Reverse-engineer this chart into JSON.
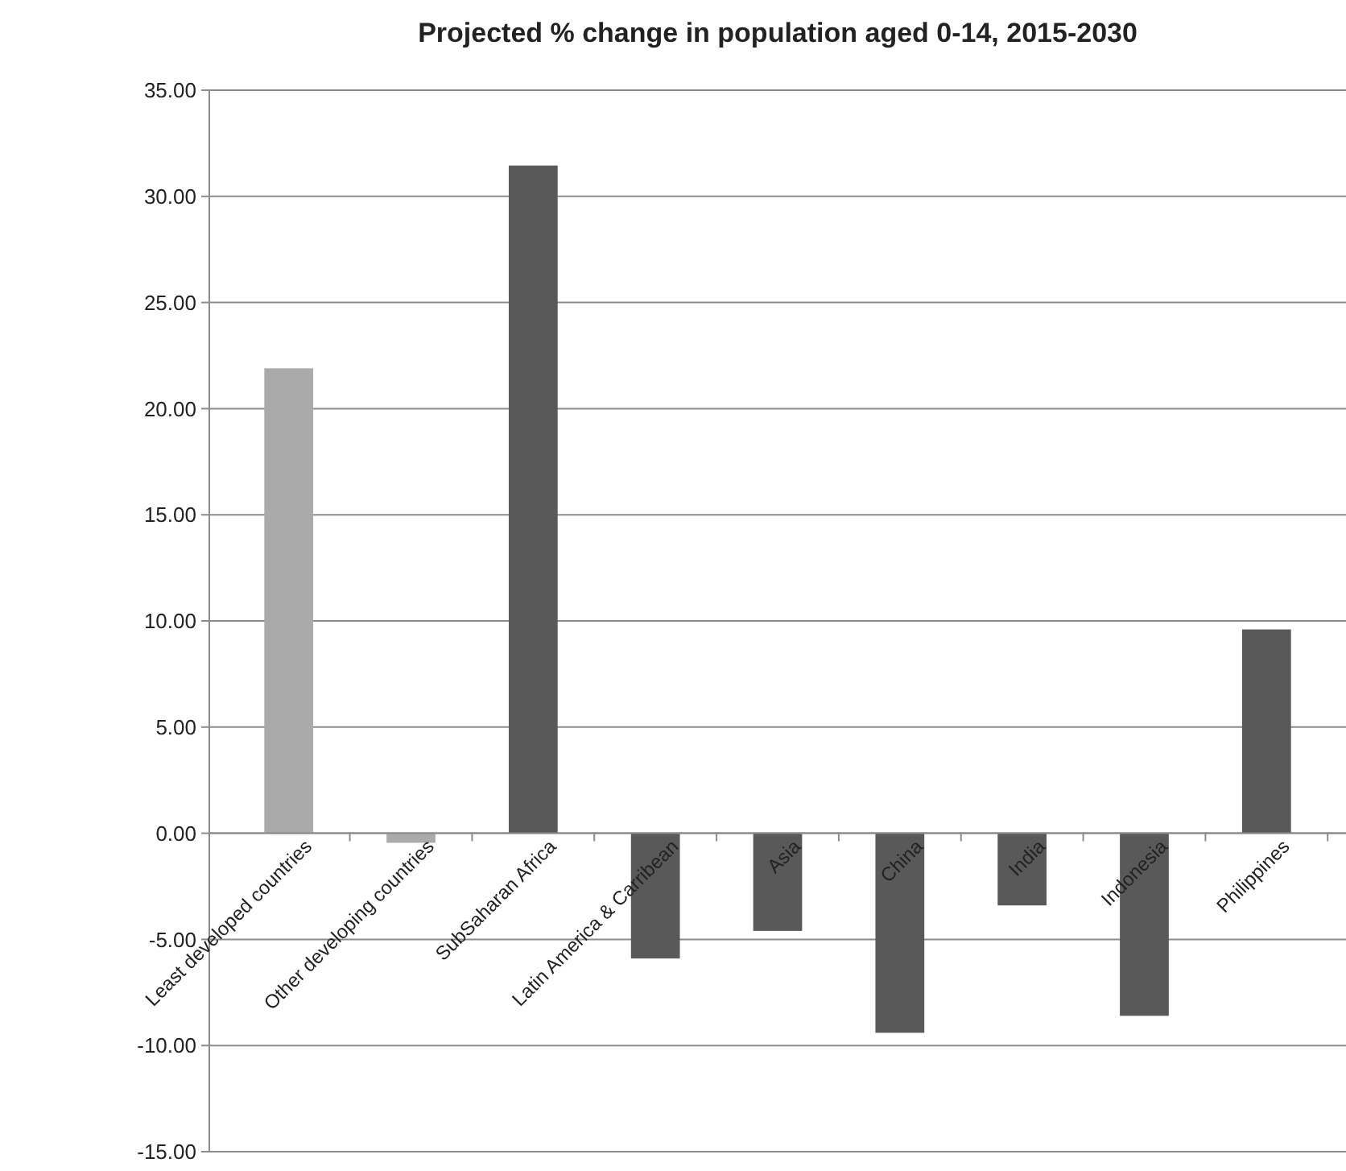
{
  "chart_data": {
    "type": "bar",
    "title": "Projected % change in population aged 0-14, 2015-2030",
    "categories": [
      "Least developed countries",
      "Other developing countries",
      "SubSaharan Africa",
      "Latin America & Carribean",
      "Asia",
      "China",
      "India",
      "Indonesia",
      "Philippines"
    ],
    "values": [
      21.9,
      -0.45,
      31.45,
      -5.9,
      -4.6,
      -9.4,
      -3.4,
      -8.6,
      9.6
    ],
    "colors": [
      "#aaaaaa",
      "#aaaaaa",
      "#595959",
      "#595959",
      "#595959",
      "#595959",
      "#595959",
      "#595959",
      "#595959"
    ],
    "ylim": [
      -15,
      35
    ],
    "yticks": [
      {
        "value": -15,
        "label": "-15.00"
      },
      {
        "value": -10,
        "label": "-10.00"
      },
      {
        "value": -5,
        "label": "-5.00"
      },
      {
        "value": 0,
        "label": "0.00"
      },
      {
        "value": 5,
        "label": "5.00"
      },
      {
        "value": 10,
        "label": "10.00"
      },
      {
        "value": 15,
        "label": "15.00"
      },
      {
        "value": 20,
        "label": "20.00"
      },
      {
        "value": 25,
        "label": "25.00"
      },
      {
        "value": 30,
        "label": "30.00"
      },
      {
        "value": 35,
        "label": "35.00"
      }
    ],
    "grid": "y"
  }
}
